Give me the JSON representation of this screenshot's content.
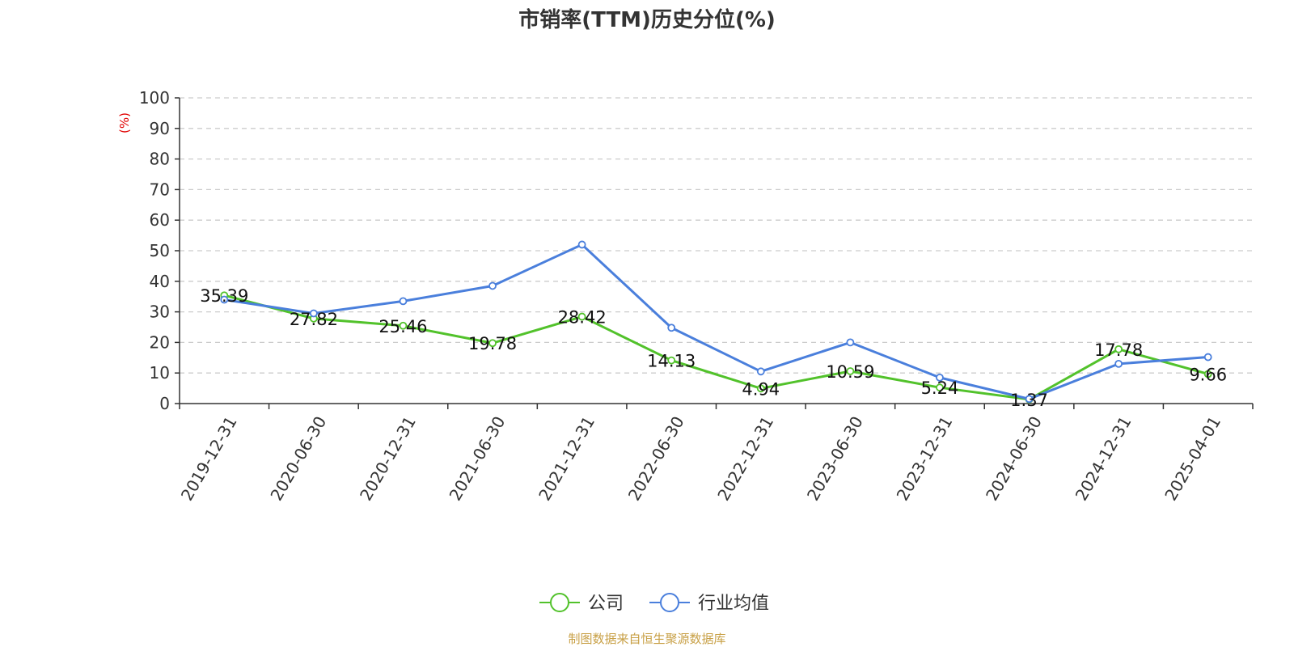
{
  "chart_data": {
    "type": "line",
    "title": "市销率(TTM)历史分位(%)",
    "ylabel": "(%)",
    "ylim": [
      0,
      100
    ],
    "yticks": [
      0,
      10,
      20,
      30,
      40,
      50,
      60,
      70,
      80,
      90,
      100
    ],
    "grid": true,
    "legend_position": "bottom-center",
    "categories": [
      "2019-12-31",
      "2020-06-30",
      "2020-12-31",
      "2021-06-30",
      "2021-12-31",
      "2022-06-30",
      "2022-12-31",
      "2023-06-30",
      "2023-12-31",
      "2024-06-30",
      "2024-12-31",
      "2025-04-01"
    ],
    "series": [
      {
        "name": "公司",
        "color": "#52c22b",
        "show_labels": true,
        "values": [
          35.39,
          27.82,
          25.46,
          19.78,
          28.42,
          14.13,
          4.94,
          10.59,
          5.24,
          1.37,
          17.78,
          9.66
        ]
      },
      {
        "name": "行业均值",
        "color": "#4a7fdc",
        "show_labels": false,
        "values": [
          34.0,
          29.5,
          33.5,
          38.5,
          52.0,
          24.8,
          10.5,
          20.0,
          8.5,
          1.5,
          13.0,
          15.2
        ]
      }
    ],
    "source": "制图数据来自恒生聚源数据库"
  }
}
